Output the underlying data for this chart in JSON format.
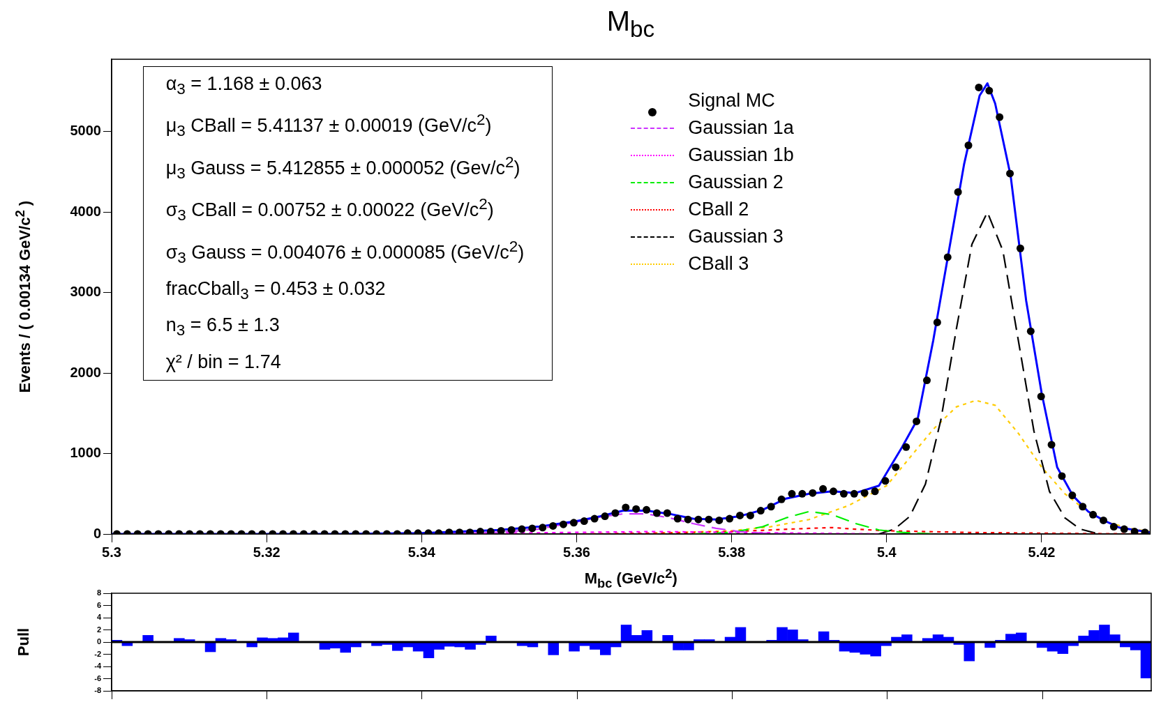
{
  "chart_data": [
    {
      "type": "scatter",
      "title": "M$_{bc}$",
      "xlabel": "M$_{bc}$ (GeV/c$^{2}$)",
      "ylabel": "Events / ( 0.00134 GeV/c$^{2}$ )",
      "annotations": [
        "α$_{3}$ =  1.168 ± 0.063",
        "μ$_{3}$ CBall =  5.41137 ± 0.00019 (GeV/c$^{2}$)",
        "μ$_{3}$ Gauss  =  5.412855 ± 0.000052 (Gev/c$^{2}$)",
        "σ$_{3}$ CBall =  0.00752 ± 0.00022 (GeV/c$^{2}$)",
        "σ$_{3}$ Gauss  =  0.004076 ± 0.000085 (GeV/c$^{2}$)",
        "fracCball$_{3}$ =  0.453 ± 0.032",
        "n$_{3}$ =  6.5 ± 1.3",
        "χ² / bin = 1.74"
      ],
      "xlim": [
        5.3,
        5.434
      ],
      "xticks": [
        5.3,
        5.32,
        5.34,
        5.36,
        5.38,
        5.4,
        5.42
      ],
      "ylim": [
        0,
        5900
      ],
      "yticks": [
        0,
        1000,
        2000,
        3000,
        4000,
        5000
      ],
      "legend": "top right",
      "series": [
        {
          "name": "Signal MC",
          "type": "scatter",
          "marker": "circle",
          "color": "#000000",
          "x": [
            5.30067,
            5.30201,
            5.30335,
            5.30469,
            5.30603,
            5.30737,
            5.30871,
            5.31005,
            5.31139,
            5.31273,
            5.31407,
            5.31541,
            5.31675,
            5.31809,
            5.31943,
            5.32077,
            5.32211,
            5.32345,
            5.32479,
            5.32613,
            5.32747,
            5.32881,
            5.33015,
            5.33149,
            5.33283,
            5.33417,
            5.33551,
            5.33685,
            5.33819,
            5.33953,
            5.34087,
            5.34221,
            5.34355,
            5.34489,
            5.34623,
            5.34757,
            5.34891,
            5.35025,
            5.35159,
            5.35293,
            5.35427,
            5.35561,
            5.35695,
            5.35829,
            5.35963,
            5.36097,
            5.36231,
            5.36365,
            5.36499,
            5.36633,
            5.36767,
            5.36901,
            5.37035,
            5.37169,
            5.37303,
            5.37437,
            5.37571,
            5.37705,
            5.37839,
            5.37973,
            5.38107,
            5.38241,
            5.38375,
            5.38509,
            5.38643,
            5.38777,
            5.38911,
            5.39045,
            5.39179,
            5.39313,
            5.39447,
            5.39581,
            5.39715,
            5.39849,
            5.39983,
            5.40117,
            5.40251,
            5.40385,
            5.40519,
            5.40653,
            5.40787,
            5.40921,
            5.41055,
            5.41189,
            5.41323,
            5.41457,
            5.41591,
            5.41725,
            5.41859,
            5.41993,
            5.42127,
            5.42261,
            5.42395,
            5.42529,
            5.42663,
            5.42797,
            5.42931,
            5.43065,
            5.43199,
            5.43333
          ],
          "values": [
            0,
            0,
            0,
            0,
            0,
            0,
            0,
            0,
            0,
            0,
            0,
            0,
            0,
            0,
            0,
            0,
            0,
            0,
            0,
            0,
            0,
            0,
            0,
            0,
            0,
            0,
            0,
            0,
            10,
            10,
            10,
            10,
            20,
            20,
            20,
            30,
            30,
            40,
            50,
            60,
            70,
            80,
            100,
            120,
            140,
            160,
            190,
            220,
            260,
            330,
            310,
            300,
            260,
            260,
            190,
            180,
            180,
            180,
            170,
            190,
            230,
            230,
            290,
            340,
            430,
            500,
            500,
            510,
            560,
            530,
            500,
            500,
            510,
            530,
            660,
            830,
            1080,
            1400,
            1910,
            2630,
            3440,
            4250,
            4830,
            5550,
            5510,
            5180,
            4480,
            3550,
            2520,
            1710,
            1110,
            720,
            480,
            340,
            240,
            170,
            90,
            60,
            30,
            20
          ]
        },
        {
          "type": "line",
          "marker": "none",
          "line_style": "solid",
          "color": "#0000ff",
          "x": [
            5.3,
            5.31,
            5.32,
            5.33,
            5.34,
            5.345,
            5.35,
            5.355,
            5.36,
            5.363,
            5.366,
            5.369,
            5.372,
            5.375,
            5.378,
            5.381,
            5.384,
            5.387,
            5.39,
            5.393,
            5.396,
            5.399,
            5.402,
            5.404,
            5.406,
            5.408,
            5.41,
            5.412,
            5.413,
            5.414,
            5.416,
            5.418,
            5.42,
            5.422,
            5.424,
            5.426,
            5.428,
            5.43,
            5.434
          ],
          "values": [
            0,
            0,
            0,
            0,
            10,
            30,
            50,
            90,
            160,
            220,
            290,
            290,
            250,
            190,
            180,
            220,
            300,
            440,
            500,
            530,
            510,
            600,
            1080,
            1430,
            2400,
            3500,
            4600,
            5450,
            5600,
            5350,
            4450,
            2900,
            1750,
            830,
            480,
            280,
            170,
            80,
            20
          ]
        },
        {
          "name": "Gaussian 1a",
          "type": "line",
          "marker": "none",
          "line_style": "dashed",
          "color": "#cc33ff",
          "x": [
            5.34,
            5.345,
            5.35,
            5.355,
            5.36,
            5.363,
            5.366,
            5.369,
            5.372,
            5.375,
            5.378,
            5.381,
            5.384,
            5.39
          ],
          "values": [
            0,
            10,
            20,
            60,
            150,
            210,
            250,
            250,
            200,
            130,
            70,
            30,
            10,
            0
          ]
        },
        {
          "name": "Gaussian 1b",
          "type": "line",
          "marker": "none",
          "line_style": "dotted",
          "color": "#ff00ff",
          "x": [
            5.34,
            5.35,
            5.36,
            5.37,
            5.38,
            5.39,
            5.4
          ],
          "values": [
            0,
            10,
            20,
            30,
            20,
            10,
            0
          ]
        },
        {
          "name": "Gaussian 2",
          "type": "line",
          "marker": "none",
          "line_style": "dashed",
          "color": "#00ee00",
          "x": [
            5.375,
            5.38,
            5.384,
            5.387,
            5.39,
            5.393,
            5.396,
            5.399,
            5.402,
            5.406
          ],
          "values": [
            0,
            20,
            90,
            200,
            280,
            240,
            130,
            50,
            20,
            0
          ]
        },
        {
          "name": "CBall 2",
          "type": "line",
          "marker": "none",
          "line_style": "dotted",
          "color": "#ff0000",
          "x": [
            5.36,
            5.37,
            5.38,
            5.385,
            5.39,
            5.393,
            5.396,
            5.4,
            5.41,
            5.42,
            5.434
          ],
          "values": [
            0,
            10,
            30,
            50,
            70,
            80,
            60,
            40,
            20,
            10,
            0
          ]
        },
        {
          "name": "Gaussian 3",
          "type": "line",
          "marker": "none",
          "line_style": "dashed",
          "color": "#000000",
          "x": [
            5.399,
            5.401,
            5.403,
            5.405,
            5.407,
            5.409,
            5.411,
            5.413,
            5.415,
            5.417,
            5.419,
            5.421,
            5.423,
            5.425,
            5.427
          ],
          "values": [
            0,
            60,
            220,
            620,
            1420,
            2550,
            3600,
            4000,
            3520,
            2400,
            1280,
            530,
            200,
            60,
            10
          ]
        },
        {
          "name": "CBall 3",
          "type": "line",
          "marker": "none",
          "line_style": "dotted",
          "color": "#ffcc00",
          "x": [
            5.37,
            5.38,
            5.385,
            5.39,
            5.395,
            5.4,
            5.403,
            5.406,
            5.409,
            5.4115,
            5.414,
            5.417,
            5.42,
            5.423,
            5.426,
            5.429,
            5.432,
            5.434
          ],
          "values": [
            10,
            40,
            90,
            180,
            350,
            600,
            950,
            1300,
            1580,
            1660,
            1600,
            1250,
            830,
            500,
            270,
            130,
            60,
            30
          ]
        }
      ]
    },
    {
      "type": "histogram",
      "ylabel": "Pull",
      "color": "#0000ff",
      "xlim": [
        5.3,
        5.434
      ],
      "xticks": [
        5.3,
        5.32,
        5.34,
        5.36,
        5.38,
        5.4,
        5.42
      ],
      "ylim": [
        -8,
        8
      ],
      "yticks": [
        -8,
        -6,
        -4,
        -2,
        0,
        2,
        4,
        6,
        8
      ],
      "tick_labels": "y",
      "ref_lines": [
        {
          "axis": "y",
          "value": 0,
          "color": "#000000"
        }
      ],
      "bins": [
        5.3,
        5.30134,
        5.30268,
        5.30402,
        5.30536,
        5.3067,
        5.30804,
        5.30938,
        5.31072,
        5.31206,
        5.3134,
        5.31474,
        5.31608,
        5.31742,
        5.31876,
        5.3201,
        5.32144,
        5.32278,
        5.32412,
        5.32546,
        5.3268,
        5.32814,
        5.32948,
        5.33082,
        5.33216,
        5.3335,
        5.33484,
        5.33618,
        5.33752,
        5.33886,
        5.3402,
        5.34154,
        5.34288,
        5.34422,
        5.34556,
        5.3469,
        5.34824,
        5.34958,
        5.35092,
        5.35226,
        5.3536,
        5.35494,
        5.35628,
        5.35762,
        5.35896,
        5.3603,
        5.36164,
        5.36298,
        5.36432,
        5.36566,
        5.367,
        5.36834,
        5.36968,
        5.37102,
        5.37236,
        5.3737,
        5.37504,
        5.37638,
        5.37772,
        5.37906,
        5.3804,
        5.38174,
        5.38308,
        5.38442,
        5.38576,
        5.3871,
        5.38844,
        5.38978,
        5.39112,
        5.39246,
        5.3938,
        5.39514,
        5.39648,
        5.39782,
        5.39916,
        5.4005,
        5.40184,
        5.40318,
        5.40452,
        5.40586,
        5.4072,
        5.40854,
        5.40988,
        5.41122,
        5.41256,
        5.4139,
        5.41524,
        5.41658,
        5.41792,
        5.41926,
        5.4206,
        5.42194,
        5.42328,
        5.42462,
        5.42596,
        5.4273,
        5.42864,
        5.42998,
        5.43132,
        5.43266,
        5.434
      ],
      "values": [
        0.3,
        -0.6,
        0,
        1.1,
        0,
        0,
        0.6,
        0.4,
        0,
        -1.6,
        0.6,
        0.4,
        0,
        -0.8,
        0.7,
        0.6,
        0.7,
        1.5,
        0,
        0,
        -1.2,
        -1.0,
        -1.7,
        -0.8,
        0,
        -0.6,
        -0.4,
        -1.4,
        -0.8,
        -1.5,
        -2.6,
        -1.2,
        -0.7,
        -0.8,
        -1.2,
        -0.4,
        1.0,
        0,
        0,
        -0.6,
        -0.8,
        0,
        -2.1,
        0,
        -1.5,
        -0.6,
        -1.2,
        -2.1,
        -0.8,
        2.8,
        1.1,
        1.9,
        0,
        1.1,
        -1.3,
        -1.3,
        0.4,
        0.4,
        0,
        0.8,
        2.4,
        0,
        0,
        0.3,
        2.4,
        2.0,
        0.4,
        0,
        1.7,
        0.3,
        -1.5,
        -1.7,
        -2.0,
        -2.3,
        -0.6,
        0.8,
        1.2,
        0,
        0.6,
        1.2,
        0.8,
        -0.4,
        -3.1,
        0,
        -0.9,
        0.3,
        1.3,
        1.5,
        0,
        -0.9,
        -1.5,
        -1.9,
        -0.6,
        1.0,
        1.9,
        2.8,
        1.2,
        -0.8,
        -1.3,
        -5.9
      ]
    }
  ]
}
